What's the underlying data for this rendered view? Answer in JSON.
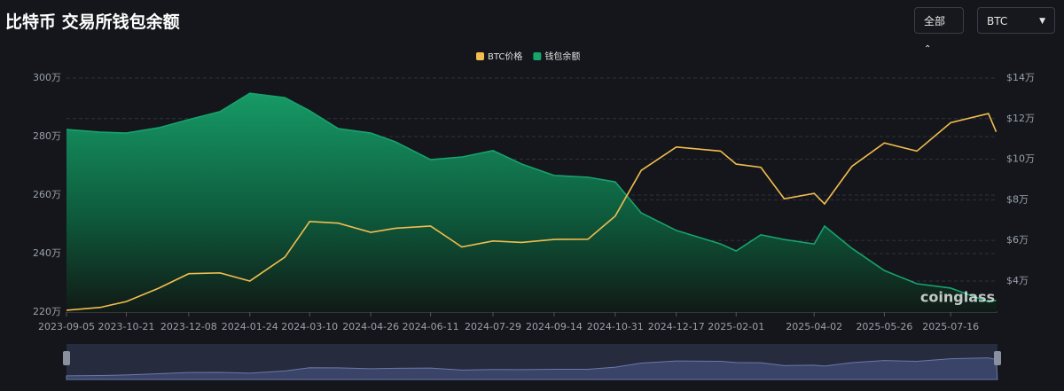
{
  "page": {
    "title": "比特币 交易所钱包余额",
    "range_select": "全部",
    "coin_select": "BTC",
    "watermark": "coinglass"
  },
  "chart_data": {
    "type": "line",
    "x": [
      "2023-09-05",
      "2023-10-01",
      "2023-10-21",
      "2023-11-15",
      "2023-12-08",
      "2024-01-01",
      "2024-01-24",
      "2024-02-20",
      "2024-03-10",
      "2024-04-01",
      "2024-04-26",
      "2024-05-15",
      "2024-06-11",
      "2024-07-05",
      "2024-07-29",
      "2024-08-20",
      "2024-09-14",
      "2024-10-10",
      "2024-10-31",
      "2024-11-20",
      "2024-12-17",
      "2025-01-20",
      "2025-02-01",
      "2025-02-20",
      "2025-03-10",
      "2025-04-02",
      "2025-04-10",
      "2025-05-01",
      "2025-05-26",
      "2025-06-20",
      "2025-07-16",
      "2025-08-14",
      "2025-08-20"
    ],
    "xlim": [
      "2023-09-05",
      "2025-08-21"
    ],
    "xticks": [
      "2023-09-05",
      "2023-10-21",
      "2023-12-08",
      "2024-01-24",
      "2024-03-10",
      "2024-04-26",
      "2024-06-11",
      "2024-07-29",
      "2024-09-14",
      "2024-10-31",
      "2024-12-17",
      "2025-02-01",
      "2025-04-02",
      "2025-05-26",
      "2025-07-16"
    ],
    "series": [
      {
        "name": "BTC价格",
        "color": "#f2bd4e",
        "axis": "y2",
        "area": false,
        "values": [
          25600,
          27000,
          29900,
          36500,
          43600,
          44000,
          40000,
          51800,
          69300,
          68500,
          64000,
          66000,
          67100,
          56800,
          59700,
          59000,
          60500,
          60600,
          72000,
          94500,
          106000,
          104000,
          97600,
          96000,
          80500,
          83200,
          78000,
          96500,
          108000,
          104000,
          118000,
          122500,
          113500
        ]
      },
      {
        "name": "钱包余额",
        "color": "#17a36c",
        "area": true,
        "values": [
          2824000,
          2815000,
          2812000,
          2830000,
          2858000,
          2885000,
          2948000,
          2933000,
          2888000,
          2827000,
          2812000,
          2782000,
          2721000,
          2730000,
          2752000,
          2706000,
          2667000,
          2661000,
          2645000,
          2539000,
          2479000,
          2433000,
          2409000,
          2464000,
          2448000,
          2433000,
          2494000,
          2418000,
          2342000,
          2297000,
          2282000,
          2235000,
          2240000
        ]
      }
    ],
    "ylim": [
      2200000,
      3000000
    ],
    "yticks": [
      {
        "value": 2200000,
        "label": "220万"
      },
      {
        "value": 2400000,
        "label": "240万"
      },
      {
        "value": 2600000,
        "label": "260万"
      },
      {
        "value": 2800000,
        "label": "280万"
      },
      {
        "value": 3000000,
        "label": "300万"
      }
    ],
    "y2lim": [
      24700,
      140000
    ],
    "y2ticks": [
      {
        "value": 40000,
        "label": "$4万"
      },
      {
        "value": 60000,
        "label": "$6万"
      },
      {
        "value": 80000,
        "label": "$8万"
      },
      {
        "value": 100000,
        "label": "$10万"
      },
      {
        "value": 120000,
        "label": "$12万"
      },
      {
        "value": 140000,
        "label": "$14万"
      }
    ],
    "grid": true
  }
}
